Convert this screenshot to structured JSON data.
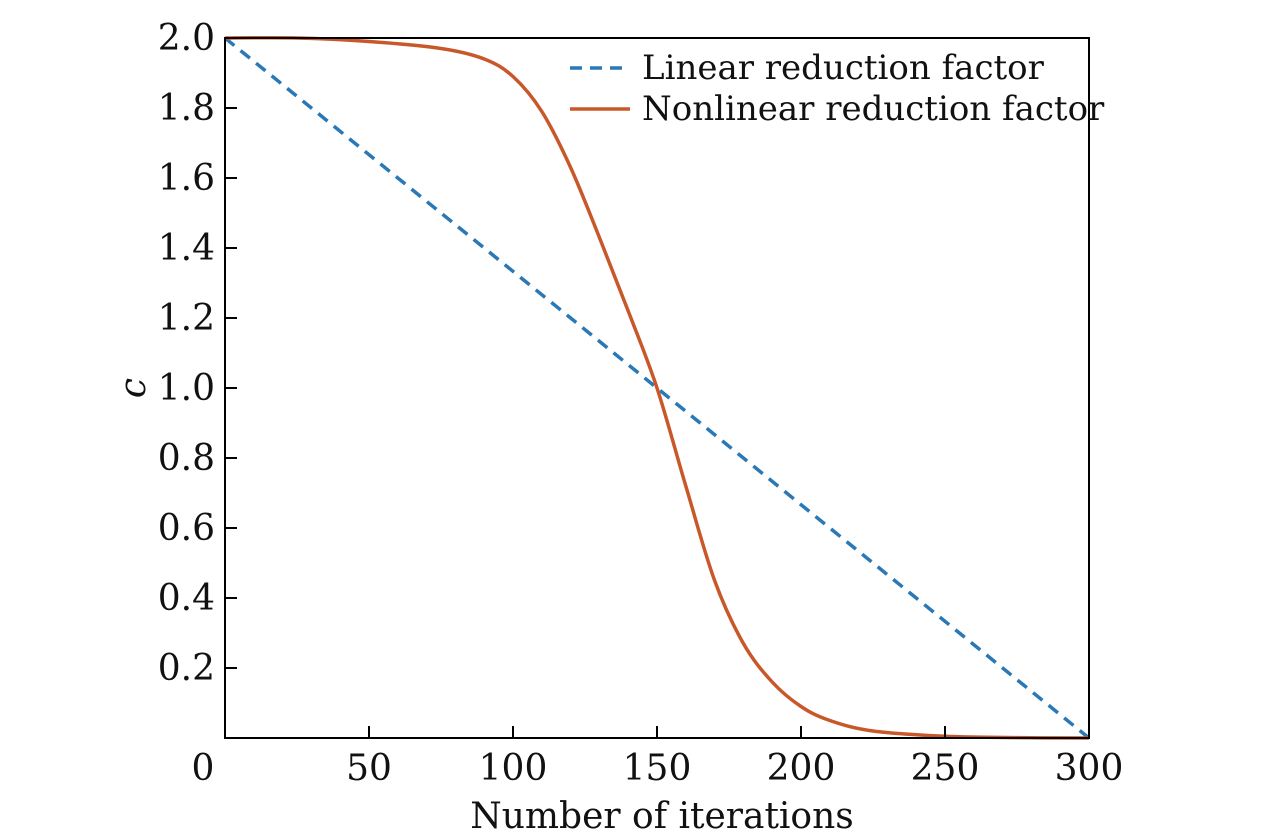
{
  "chart_data": {
    "type": "line",
    "title": "",
    "xlabel": "Number of iterations",
    "ylabel": "c",
    "xlim": [
      0,
      300
    ],
    "ylim": [
      0,
      2.0
    ],
    "x_ticks": [
      0,
      50,
      100,
      150,
      200,
      250,
      300
    ],
    "x_tick_labels": [
      "0",
      "50",
      "100",
      "150",
      "200",
      "250",
      "300"
    ],
    "y_ticks": [
      0.2,
      0.4,
      0.6,
      0.8,
      1.0,
      1.2,
      1.4,
      1.6,
      1.8,
      2.0
    ],
    "y_tick_labels": [
      "0.2",
      "0.4",
      "0.6",
      "0.8",
      "1.0",
      "1.2",
      "1.4",
      "1.6",
      "1.8",
      "2.0"
    ],
    "grid": false,
    "legend_position": "top-right",
    "series": [
      {
        "name": "Linear reduction factor",
        "style": "dashed",
        "color": "#2a78b5",
        "x": [
          0,
          300
        ],
        "y": [
          2.0,
          0.0
        ]
      },
      {
        "name": "Nonlinear reduction factor",
        "style": "solid",
        "color": "#c8582a",
        "x": [
          0,
          25,
          50,
          75,
          90,
          100,
          110,
          120,
          130,
          140,
          150,
          160,
          170,
          180,
          190,
          200,
          210,
          225,
          250,
          275,
          300
        ],
        "y": [
          2.0,
          2.0,
          1.99,
          1.97,
          1.94,
          1.89,
          1.79,
          1.63,
          1.43,
          1.22,
          1.0,
          0.72,
          0.45,
          0.27,
          0.16,
          0.09,
          0.05,
          0.02,
          0.005,
          0.001,
          0.0
        ]
      }
    ]
  }
}
